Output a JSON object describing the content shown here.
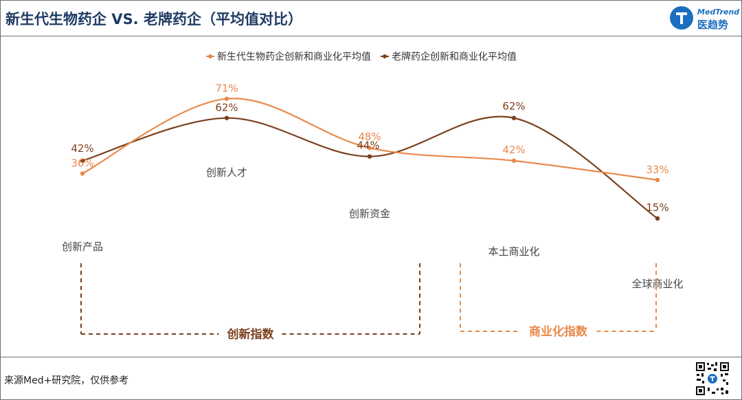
{
  "header": {
    "title": "新生代生物药企 VS. 老牌药企（平均值对比）",
    "logo_en": "MedTrend",
    "logo_cn": "医趋势"
  },
  "footer": {
    "source": "来源Med+研究院，仅供参考"
  },
  "colors": {
    "new_series": "#e8894a",
    "old_series": "#7b3f1c",
    "title": "#1f3b64",
    "brand": "#1b6fc0"
  },
  "chart_data": {
    "type": "line",
    "categories": [
      "创新产品",
      "创新人才",
      "创新资金",
      "本土商业化",
      "全球商业化"
    ],
    "series": [
      {
        "name": "新生代生物药企创新和商业化平均值",
        "values": [
          36,
          71,
          48,
          42,
          33
        ],
        "labels": [
          "36%",
          "71%",
          "48%",
          "42%",
          "33%"
        ],
        "color": "#e8894a"
      },
      {
        "name": "老牌药企创新和商业化平均值",
        "values": [
          42,
          62,
          44,
          62,
          15
        ],
        "labels": [
          "42%",
          "62%",
          "44%",
          "62%",
          "15%"
        ],
        "color": "#7b3f1c"
      }
    ],
    "groups": [
      {
        "label": "创新指数",
        "categories": [
          "创新产品",
          "创新人才",
          "创新资金"
        ],
        "color": "#7b3f1c"
      },
      {
        "label": "商业化指数",
        "categories": [
          "本土商业化",
          "全球商业化"
        ],
        "color": "#e8894a"
      }
    ],
    "legend": "top-center",
    "grid": false,
    "smooth": true
  }
}
